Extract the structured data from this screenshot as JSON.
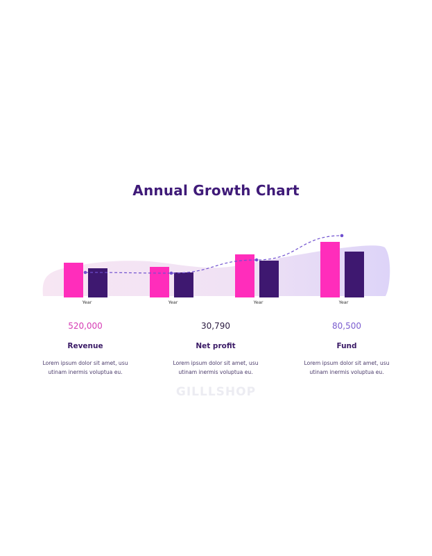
{
  "chart_data": {
    "type": "bar",
    "title": "Annual Growth Chart",
    "categories": [
      "Year",
      "Year",
      "Year",
      "Year"
    ],
    "series": [
      {
        "values": [
          50,
          44,
          62,
          80
        ],
        "color": "#ff2dbb"
      },
      {
        "values": [
          42,
          36,
          53,
          66
        ],
        "color": "#3e1870"
      }
    ],
    "trend": [
      36,
      35,
      54,
      89
    ],
    "trend_color": "#6f4fcf",
    "ylim": [
      0,
      100
    ]
  },
  "stats": [
    {
      "value": "520,000",
      "label": "Revenue",
      "desc_line1": "Lorem ipsum dolor sit amet, usu",
      "desc_line2": "utinam inermis voluptua eu.",
      "value_color": "#d63bb4"
    },
    {
      "value": "30,790",
      "label": "Net profit",
      "desc_line1": "Lorem ipsum dolor sit amet, usu",
      "desc_line2": "utinam inermis voluptua eu.",
      "value_color": "#2a1a40"
    },
    {
      "value": "80,500",
      "label": "Fund",
      "desc_line1": "Lorem ipsum dolor sit amet, usu",
      "desc_line2": "utinam inermis voluptua eu.",
      "value_color": "#7a5ccf"
    }
  ],
  "watermark": "GILLLSHOP"
}
